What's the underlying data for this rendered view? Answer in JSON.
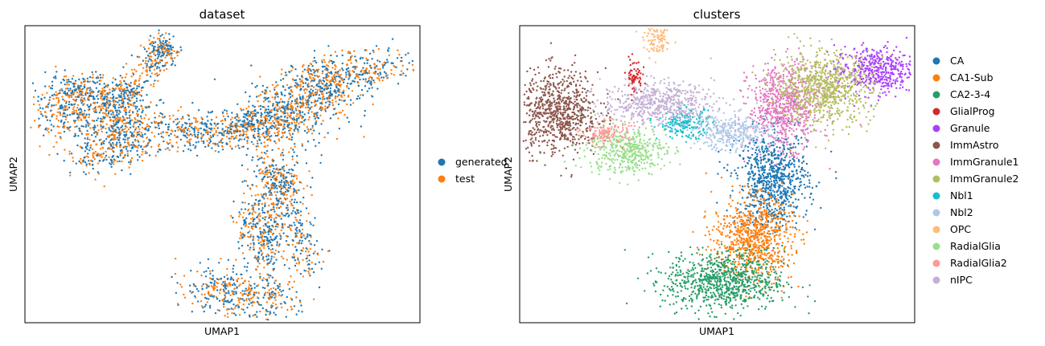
{
  "chart_data": [
    {
      "type": "scatter",
      "title": "dataset",
      "xlabel": "UMAP1",
      "ylabel": "UMAP2",
      "xlim": [
        0,
        1
      ],
      "ylim": [
        0,
        1
      ],
      "grid": false,
      "ticks": false,
      "legend_placement": "outside-right",
      "series": [
        {
          "name": "generated",
          "color": "#1f77b4"
        },
        {
          "name": "test",
          "color": "#ff7f0e"
        }
      ]
    },
    {
      "type": "scatter",
      "title": "clusters",
      "xlabel": "UMAP1",
      "ylabel": "UMAP2",
      "xlim": [
        0,
        1
      ],
      "ylim": [
        0,
        1
      ],
      "grid": false,
      "ticks": false,
      "legend_placement": "outside-right",
      "series": [
        {
          "name": "CA",
          "color": "#1f77b4",
          "region": {
            "cx": 0.64,
            "cy": 0.48,
            "sx": 0.045,
            "sy": 0.08
          }
        },
        {
          "name": "CA1-Sub",
          "color": "#ff7f0e",
          "region": {
            "cx": 0.59,
            "cy": 0.28,
            "sx": 0.05,
            "sy": 0.07
          }
        },
        {
          "name": "CA2-3-4",
          "color": "#279e68",
          "region": {
            "cx": 0.52,
            "cy": 0.14,
            "sx": 0.075,
            "sy": 0.05
          }
        },
        {
          "name": "GlialProg",
          "color": "#d62728",
          "region": {
            "cx": 0.29,
            "cy": 0.83,
            "sx": 0.01,
            "sy": 0.03
          }
        },
        {
          "name": "Granule",
          "color": "#aa40fc",
          "region": {
            "cx": 0.9,
            "cy": 0.85,
            "sx": 0.05,
            "sy": 0.04
          }
        },
        {
          "name": "ImmAstro",
          "color": "#8c564b",
          "region": {
            "cx": 0.1,
            "cy": 0.71,
            "sx": 0.05,
            "sy": 0.07
          }
        },
        {
          "name": "ImmGranule1",
          "color": "#e377c2",
          "region": {
            "cx": 0.67,
            "cy": 0.73,
            "sx": 0.045,
            "sy": 0.07
          }
        },
        {
          "name": "ImmGranule2",
          "color": "#b5bd61",
          "region": {
            "cx": 0.77,
            "cy": 0.79,
            "sx": 0.06,
            "sy": 0.06
          }
        },
        {
          "name": "Nbl1",
          "color": "#17becf",
          "region": {
            "cx": 0.42,
            "cy": 0.67,
            "sx": 0.035,
            "sy": 0.025
          }
        },
        {
          "name": "Nbl2",
          "color": "#aec7e8",
          "region": {
            "cx": 0.54,
            "cy": 0.64,
            "sx": 0.05,
            "sy": 0.03
          }
        },
        {
          "name": "OPC",
          "color": "#ffbb78",
          "region": {
            "cx": 0.35,
            "cy": 0.95,
            "sx": 0.018,
            "sy": 0.025
          }
        },
        {
          "name": "RadialGlia",
          "color": "#98df8a",
          "region": {
            "cx": 0.27,
            "cy": 0.58,
            "sx": 0.05,
            "sy": 0.04
          }
        },
        {
          "name": "RadialGlia2",
          "color": "#ff9896",
          "region": {
            "cx": 0.22,
            "cy": 0.64,
            "sx": 0.03,
            "sy": 0.02
          }
        },
        {
          "name": "nIPC",
          "color": "#c5b0d5",
          "region": {
            "cx": 0.35,
            "cy": 0.74,
            "sx": 0.07,
            "sy": 0.035
          }
        }
      ]
    }
  ]
}
